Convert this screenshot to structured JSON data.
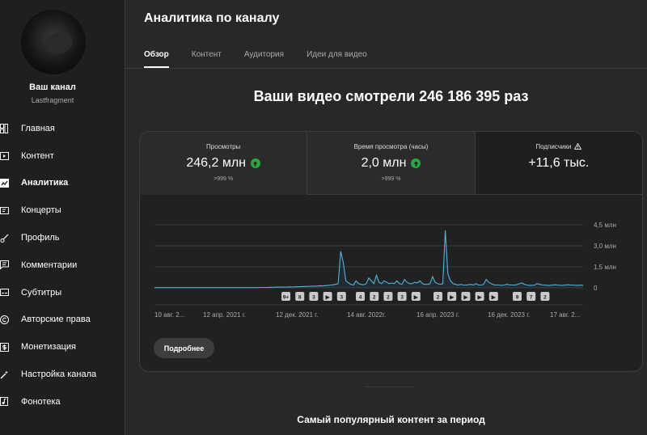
{
  "sidebar": {
    "channel_name": "Ваш канал",
    "channel_handle": "Lastfragment",
    "items": [
      {
        "label": "Главная",
        "icon": "dashboard-icon"
      },
      {
        "label": "Контент",
        "icon": "content-icon"
      },
      {
        "label": "Аналитика",
        "icon": "analytics-icon"
      },
      {
        "label": "Концерты",
        "icon": "ticket-icon"
      },
      {
        "label": "Профиль",
        "icon": "brush-icon"
      },
      {
        "label": "Комментарии",
        "icon": "comments-icon"
      },
      {
        "label": "Субтитры",
        "icon": "subtitles-icon"
      },
      {
        "label": "Авторские права",
        "icon": "copyright-icon"
      },
      {
        "label": "Монетизация",
        "icon": "monetization-icon"
      },
      {
        "label": "Настройка канала",
        "icon": "customization-icon"
      },
      {
        "label": "Фонотека",
        "icon": "audio-library-icon"
      }
    ]
  },
  "header": {
    "title": "Аналитика по каналу",
    "tabs": [
      "Обзор",
      "Контент",
      "Аудитория",
      "Идеи для видео"
    ]
  },
  "headline": "Ваши видео смотрели 246 186 395 раз",
  "metrics": [
    {
      "label": "Просмотры",
      "value": "246,2 млн",
      "sub": ">999 %"
    },
    {
      "label": "Время просмотра (часы)",
      "value": "2,0 млн",
      "sub": ">999 %"
    },
    {
      "label": "Подписчики",
      "value": "+11,6 тыс.",
      "sub": ""
    }
  ],
  "colors": {
    "accent": "#3ea6ff",
    "line": "#4fb3d9",
    "positive": "#2ba640"
  },
  "chart_data": {
    "type": "line",
    "x_tick_labels": [
      "10 авг. 2...",
      "12 апр. 2021 г.",
      "12 дек. 2021 г.",
      "14 авг. 2022г.",
      "16 апр. 2023 г.",
      "16 дек. 2023 г.",
      "17 авг. 2..."
    ],
    "y_tick_labels": [
      "4,5 млн",
      "3,0 млн",
      "1,5 млн",
      "0"
    ],
    "ylim": [
      0,
      4.5
    ],
    "grid": true,
    "series": [
      {
        "values": [
          0.02,
          0.02,
          0.02,
          0.02,
          0.02,
          0.02,
          0.02,
          0.02,
          0.02,
          0.02,
          0.02,
          0.02,
          0.02,
          0.02,
          0.02,
          0.02,
          0.02,
          0.02,
          0.02,
          0.02,
          0.02,
          0.02,
          0.02,
          0.02,
          0.02,
          0.02,
          0.02,
          0.02,
          0.02,
          0.02,
          0.02,
          0.02,
          0.02,
          0.02,
          0.02,
          0.02,
          0.02,
          0.02,
          0.02,
          0.02,
          0.02,
          0.03,
          0.03,
          0.03,
          0.03,
          0.04,
          0.04,
          0.04,
          0.05,
          0.05,
          0.06,
          0.05,
          0.06,
          0.07,
          0.06,
          0.07,
          0.08,
          0.08,
          0.09,
          0.1,
          0.1,
          0.11,
          0.12,
          0.12,
          0.13,
          0.15,
          0.14,
          0.16,
          0.18,
          0.2,
          0.22,
          0.25,
          0.3,
          2.6,
          1.8,
          0.5,
          0.35,
          0.25,
          0.2,
          0.5,
          0.3,
          0.25,
          0.22,
          0.3,
          0.7,
          0.5,
          0.3,
          0.9,
          0.4,
          0.3,
          0.5,
          0.4,
          0.3,
          0.35,
          0.3,
          0.5,
          0.3,
          0.25,
          0.6,
          0.4,
          0.3,
          0.3,
          0.4,
          0.35,
          0.5,
          0.3,
          0.25,
          0.25,
          0.3,
          0.8,
          0.4,
          0.3,
          0.25,
          0.3,
          4.1,
          1.0,
          0.5,
          0.3,
          0.25,
          0.2,
          0.25,
          0.2,
          0.2,
          0.22,
          0.25,
          0.2,
          0.3,
          0.2,
          0.2,
          0.25,
          0.6,
          0.4,
          0.3,
          0.22,
          0.2,
          0.2,
          0.18,
          0.2,
          0.25,
          0.22,
          0.2,
          0.2,
          0.22,
          0.3,
          0.35,
          0.25,
          0.2,
          0.18,
          0.18,
          0.2,
          0.3,
          0.25,
          0.2,
          0.2,
          0.18,
          0.18,
          0.2,
          0.22,
          0.2,
          0.18,
          0.18,
          0.2,
          0.22,
          0.2,
          0.2,
          0.18,
          0.18,
          0.2,
          0.18
        ]
      }
    ],
    "video_markers": [
      "9+",
      "8",
      "3",
      "▶",
      "3",
      "4",
      "2",
      "2",
      "3",
      "▶",
      "2",
      "▶",
      "▶",
      "▶",
      "▶",
      "9",
      "7",
      "2"
    ]
  },
  "more_button_label": "Подробнее",
  "section_title": "Самый популярный контент за период"
}
